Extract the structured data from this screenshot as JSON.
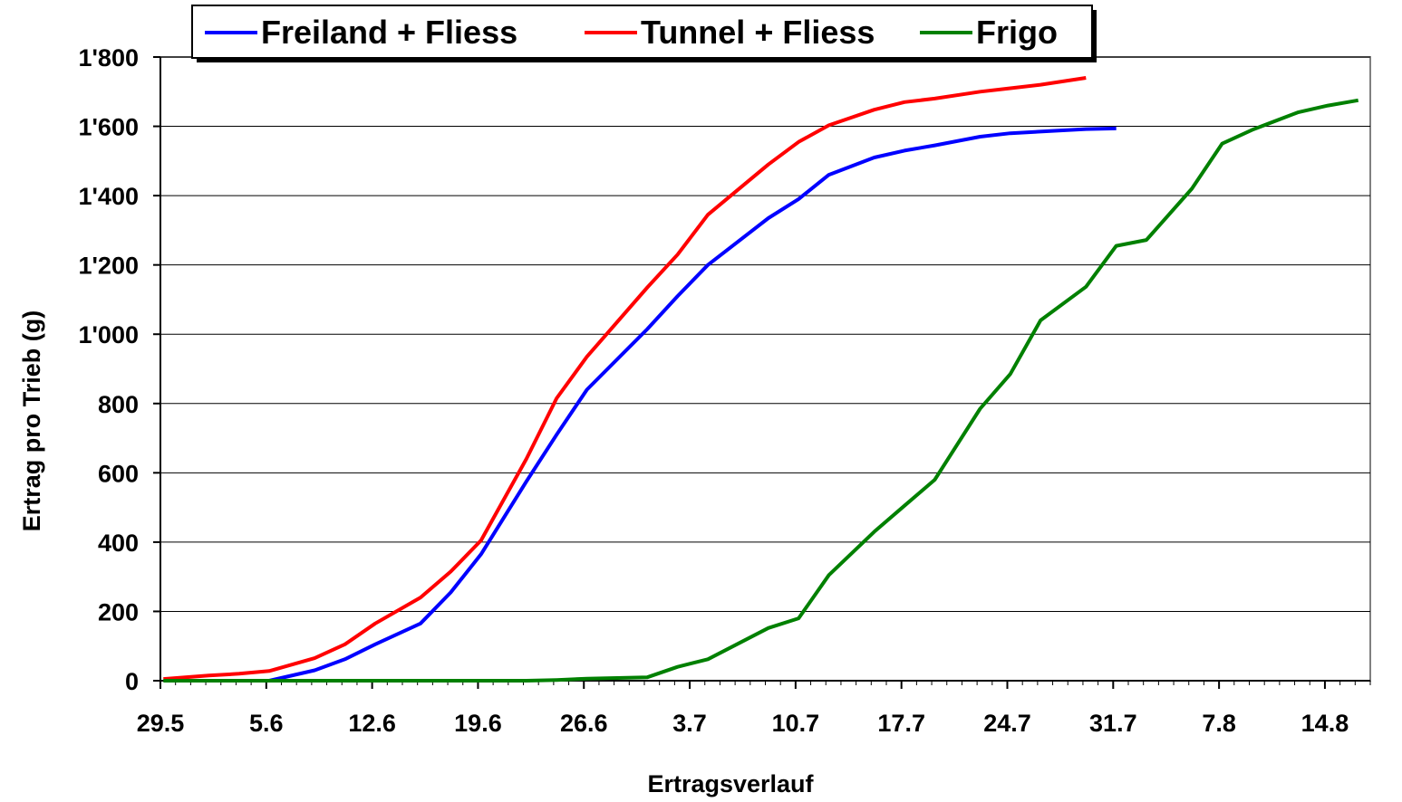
{
  "chart_data": {
    "type": "line",
    "title": "",
    "xlabel": "Ertragsverlauf",
    "ylabel": "Ertrag pro Trieb (g)",
    "ylim": [
      0,
      1800
    ],
    "y_ticks": [
      "0",
      "200",
      "400",
      "600",
      "800",
      "1'000",
      "1'200",
      "1'400",
      "1'600",
      "1'800"
    ],
    "x_ticks": [
      "29.5",
      "5.6",
      "12.6",
      "19.6",
      "26.6",
      "3.7",
      "10.7",
      "17.7",
      "24.7",
      "31.7",
      "7.8",
      "14.8"
    ],
    "x_unit": "days from 29.5 (tick spacing 7 days)",
    "grid": true,
    "legend_position": "top",
    "series": [
      {
        "name": "Freiland  + Fliess",
        "color": "#0000ff",
        "points": [
          [
            7.2,
            0
          ],
          [
            10.2,
            30
          ],
          [
            12.2,
            62
          ],
          [
            14.2,
            105
          ],
          [
            17.2,
            165
          ],
          [
            19.2,
            255
          ],
          [
            21.2,
            365
          ],
          [
            24.2,
            575
          ],
          [
            26.2,
            710
          ],
          [
            28.2,
            840
          ],
          [
            32.2,
            1015
          ],
          [
            34.2,
            1110
          ],
          [
            36.2,
            1200
          ],
          [
            40.2,
            1335
          ],
          [
            42.2,
            1390
          ],
          [
            44.2,
            1460
          ],
          [
            47.2,
            1510
          ],
          [
            49.2,
            1530
          ],
          [
            51.2,
            1545
          ],
          [
            54.2,
            1570
          ],
          [
            56.2,
            1580
          ],
          [
            61.2,
            1592
          ],
          [
            63.2,
            1594
          ]
        ]
      },
      {
        "name": "Tunnel + Fliess",
        "color": "#ff0000",
        "points": [
          [
            0.2,
            5
          ],
          [
            3.2,
            15
          ],
          [
            5.2,
            20
          ],
          [
            7.2,
            28
          ],
          [
            10.2,
            65
          ],
          [
            12.2,
            105
          ],
          [
            14.2,
            165
          ],
          [
            17.2,
            240
          ],
          [
            19.2,
            315
          ],
          [
            21.2,
            405
          ],
          [
            24.2,
            640
          ],
          [
            26.2,
            815
          ],
          [
            28.2,
            935
          ],
          [
            32.2,
            1135
          ],
          [
            34.2,
            1230
          ],
          [
            36.2,
            1345
          ],
          [
            40.2,
            1490
          ],
          [
            42.2,
            1555
          ],
          [
            44.2,
            1603
          ],
          [
            47.2,
            1648
          ],
          [
            49.2,
            1670
          ],
          [
            51.2,
            1680
          ],
          [
            54.2,
            1700
          ],
          [
            56.2,
            1710
          ],
          [
            58.2,
            1720
          ],
          [
            61.2,
            1740
          ]
        ]
      },
      {
        "name": "Frigo",
        "color": "#008000",
        "points": [
          [
            0.2,
            0
          ],
          [
            5.2,
            0
          ],
          [
            10.2,
            0
          ],
          [
            15.2,
            0
          ],
          [
            20.2,
            0
          ],
          [
            24.2,
            0
          ],
          [
            26.2,
            2
          ],
          [
            28.2,
            6
          ],
          [
            32.2,
            10
          ],
          [
            34.2,
            40
          ],
          [
            36.2,
            62
          ],
          [
            40.2,
            152
          ],
          [
            42.2,
            180
          ],
          [
            44.2,
            305
          ],
          [
            47.2,
            430
          ],
          [
            49.2,
            505
          ],
          [
            51.2,
            580
          ],
          [
            54.2,
            785
          ],
          [
            56.2,
            885
          ],
          [
            58.2,
            1040
          ],
          [
            61.2,
            1137
          ],
          [
            63.2,
            1255
          ],
          [
            65.2,
            1272
          ],
          [
            68.2,
            1420
          ],
          [
            70.2,
            1550
          ],
          [
            72.2,
            1590
          ],
          [
            75.2,
            1640
          ],
          [
            77.2,
            1660
          ],
          [
            79.2,
            1675
          ]
        ]
      }
    ]
  }
}
